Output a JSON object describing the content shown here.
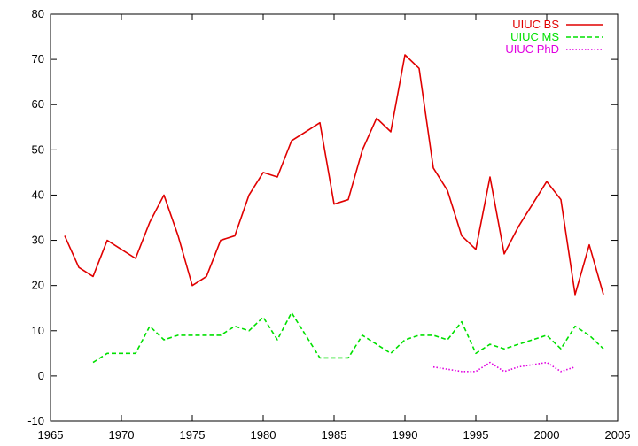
{
  "chart_data": {
    "type": "line",
    "title": "",
    "xlabel": "",
    "ylabel": "",
    "xlim": [
      1965,
      2005
    ],
    "ylim": [
      -10,
      80
    ],
    "xticks": [
      1965,
      1970,
      1975,
      1980,
      1985,
      1990,
      1995,
      2000,
      2005
    ],
    "yticks": [
      -10,
      0,
      10,
      20,
      30,
      40,
      50,
      60,
      70,
      80
    ],
    "grid": false,
    "legend_position": "top-right",
    "series": [
      {
        "name": "UIUC BS",
        "color": "#e00000",
        "style": "solid",
        "x": [
          1966,
          1967,
          1968,
          1969,
          1970,
          1971,
          1972,
          1973,
          1974,
          1975,
          1976,
          1977,
          1978,
          1979,
          1980,
          1981,
          1982,
          1983,
          1984,
          1985,
          1986,
          1987,
          1988,
          1989,
          1990,
          1991,
          1992,
          1993,
          1994,
          1995,
          1996,
          1997,
          1998,
          1999,
          2000,
          2001,
          2002,
          2003,
          2004
        ],
        "y": [
          31,
          24,
          22,
          30,
          28,
          26,
          34,
          40,
          31,
          20,
          22,
          30,
          31,
          40,
          45,
          44,
          52,
          54,
          56,
          38,
          39,
          50,
          57,
          54,
          71,
          68,
          46,
          41,
          31,
          28,
          44,
          27,
          33,
          38,
          43,
          39,
          18,
          29,
          18
        ]
      },
      {
        "name": "UIUC MS",
        "color": "#00e000",
        "style": "dashed",
        "x": [
          1968,
          1969,
          1970,
          1971,
          1972,
          1973,
          1974,
          1975,
          1976,
          1977,
          1978,
          1979,
          1980,
          1981,
          1982,
          1983,
          1984,
          1985,
          1986,
          1987,
          1988,
          1989,
          1990,
          1991,
          1992,
          1993,
          1994,
          1995,
          1996,
          1997,
          1998,
          1999,
          2000,
          2001,
          2002,
          2003,
          2004
        ],
        "y": [
          3,
          5,
          5,
          5,
          11,
          8,
          9,
          9,
          9,
          9,
          11,
          10,
          13,
          8,
          14,
          9,
          4,
          4,
          4,
          9,
          7,
          5,
          8,
          9,
          9,
          8,
          12,
          5,
          7,
          6,
          7,
          8,
          9,
          6,
          11,
          9,
          6
        ]
      },
      {
        "name": "UIUC PhD",
        "color": "#e000e0",
        "style": "dotted",
        "x": [
          1992,
          1993,
          1994,
          1995,
          1996,
          1997,
          1998,
          1999,
          2000,
          2001,
          2002
        ],
        "y": [
          2,
          1.5,
          1,
          1,
          3,
          1,
          2,
          2.5,
          3,
          1,
          2
        ]
      }
    ]
  }
}
